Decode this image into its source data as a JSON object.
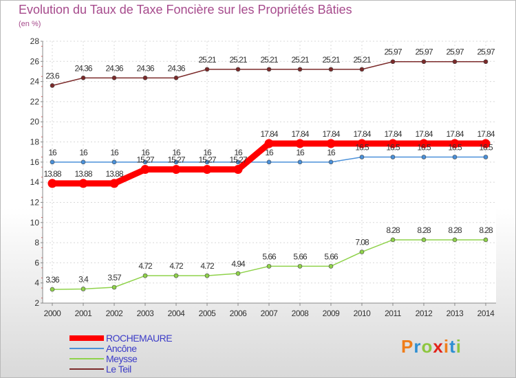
{
  "title": "Evolution du Taux de Taxe Foncière sur les Propriétés Bâties",
  "unit_label": "(en %)",
  "logo": {
    "text": "Proxiti",
    "letter_colors": [
      "#ef7d1a",
      "#2e8fd2",
      "#8dc63f",
      "#e2231a",
      "#ef7d1a",
      "#2e8fd2",
      "#8dc63f"
    ]
  },
  "chart_data": {
    "type": "line",
    "title": "Evolution du Taux de Taxe Foncière sur les Propriétés Bâties",
    "ylabel": "(en %)",
    "xlabel": "",
    "ylim": [
      2,
      28
    ],
    "yticks": [
      2,
      4,
      6,
      8,
      10,
      12,
      14,
      16,
      18,
      20,
      22,
      24,
      26,
      28
    ],
    "grid": true,
    "legend_position": "bottom-left",
    "x": [
      "2000",
      "2001",
      "2002",
      "2003",
      "2004",
      "2005",
      "2006",
      "2007",
      "2008",
      "2009",
      "2010",
      "2011",
      "2012",
      "2013",
      "2014"
    ],
    "series": [
      {
        "name": "ROCHEMAURE",
        "color": "#ff0000",
        "bold": true,
        "values": [
          13.88,
          13.88,
          13.88,
          15.27,
          15.27,
          15.27,
          15.27,
          17.84,
          17.84,
          17.84,
          17.84,
          17.84,
          17.84,
          17.84,
          17.84
        ]
      },
      {
        "name": "Ancône",
        "color": "#4a90d9",
        "values": [
          16,
          16,
          16,
          16,
          16,
          16,
          16,
          16,
          16,
          16,
          16.5,
          16.5,
          16.5,
          16.5,
          16.5
        ]
      },
      {
        "name": "Meysse",
        "color": "#8fd24a",
        "values": [
          3.36,
          3.4,
          3.57,
          4.72,
          4.72,
          4.72,
          4.94,
          5.66,
          5.66,
          5.66,
          7.08,
          8.28,
          8.28,
          8.28,
          8.28
        ]
      },
      {
        "name": "Le Teil",
        "color": "#7b2a2a",
        "values": [
          23.6,
          24.36,
          24.36,
          24.36,
          24.36,
          25.21,
          25.21,
          25.21,
          25.21,
          25.21,
          25.21,
          25.97,
          25.97,
          25.97,
          25.97
        ]
      }
    ]
  }
}
